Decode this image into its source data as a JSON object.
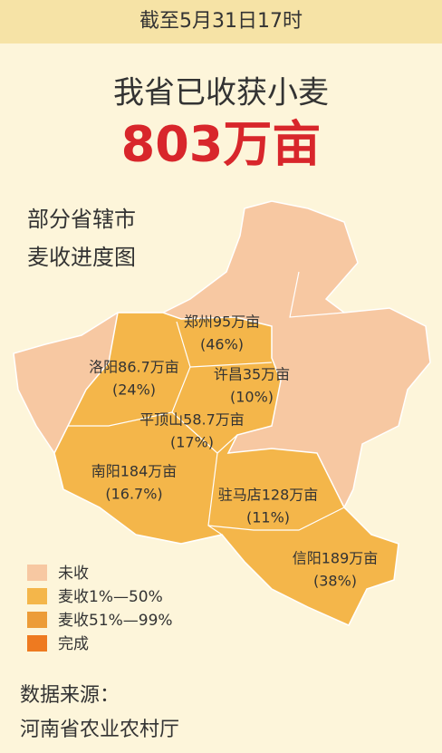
{
  "header": {
    "date": "截至5月31日17时"
  },
  "title": {
    "line1": "我省已收获小麦",
    "total": "803万亩"
  },
  "subtitle": {
    "line1": "部分省辖市",
    "line2": "麦收进度图"
  },
  "map": {
    "labels": [
      {
        "name": "郑州95万亩",
        "percent": "(46%)"
      },
      {
        "name": "洛阳86.7万亩",
        "percent": "(24%)"
      },
      {
        "name": "许昌35万亩",
        "percent": "(10%)"
      },
      {
        "name": "平顶山58.7万亩",
        "percent": "(17%)"
      },
      {
        "name": "南阳184万亩",
        "percent": "(16.7%)"
      },
      {
        "name": "驻马店128万亩",
        "percent": "(11%)"
      },
      {
        "name": "信阳189万亩",
        "percent": "(38%)"
      }
    ]
  },
  "legend": [
    {
      "label": "未收",
      "color": "#f7c8a2"
    },
    {
      "label": "麦收1%—50%",
      "color": "#f4b64a"
    },
    {
      "label": "麦收51%—99%",
      "color": "#ec9c38"
    },
    {
      "label": "完成",
      "color": "#ee7a20"
    }
  ],
  "source": {
    "line1": "数据来源：",
    "line2": "河南省农业农村厅"
  }
}
